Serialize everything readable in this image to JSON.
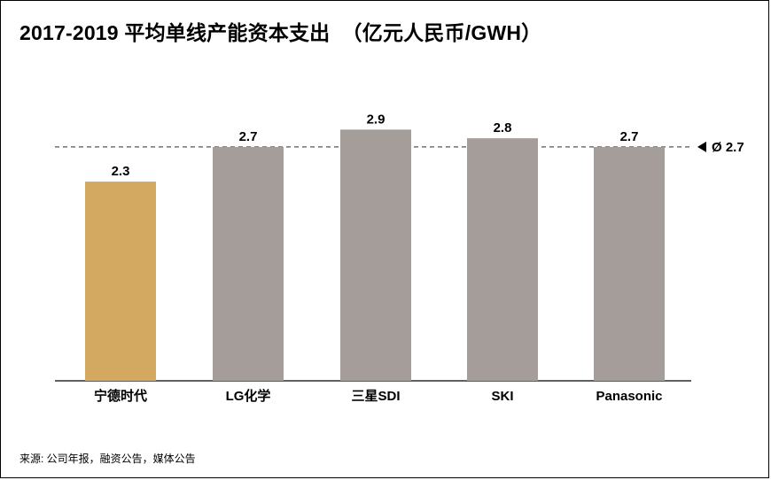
{
  "title": "2017-2019 平均单线产能资本支出  （亿元人民币/GWH）",
  "source": "来源: 公司年报，融资公告，媒体公告",
  "chart_data": {
    "type": "bar",
    "title": "2017-2019 平均单线产能资本支出  （亿元人民币/GWH）",
    "categories": [
      "宁德时代",
      "LG化学",
      "三星SDI",
      "SKI",
      "Panasonic"
    ],
    "values": [
      2.3,
      2.7,
      2.9,
      2.8,
      2.7
    ],
    "data_labels": [
      "2.3",
      "2.7",
      "2.9",
      "2.8",
      "2.7"
    ],
    "ylim": [
      0,
      3.2
    ],
    "average": {
      "value": 2.7,
      "label": "Ø 2.7"
    },
    "colors": {
      "highlight": "#D3A962",
      "default": "#A59D99"
    },
    "highlight_index": 0,
    "grid": false
  }
}
